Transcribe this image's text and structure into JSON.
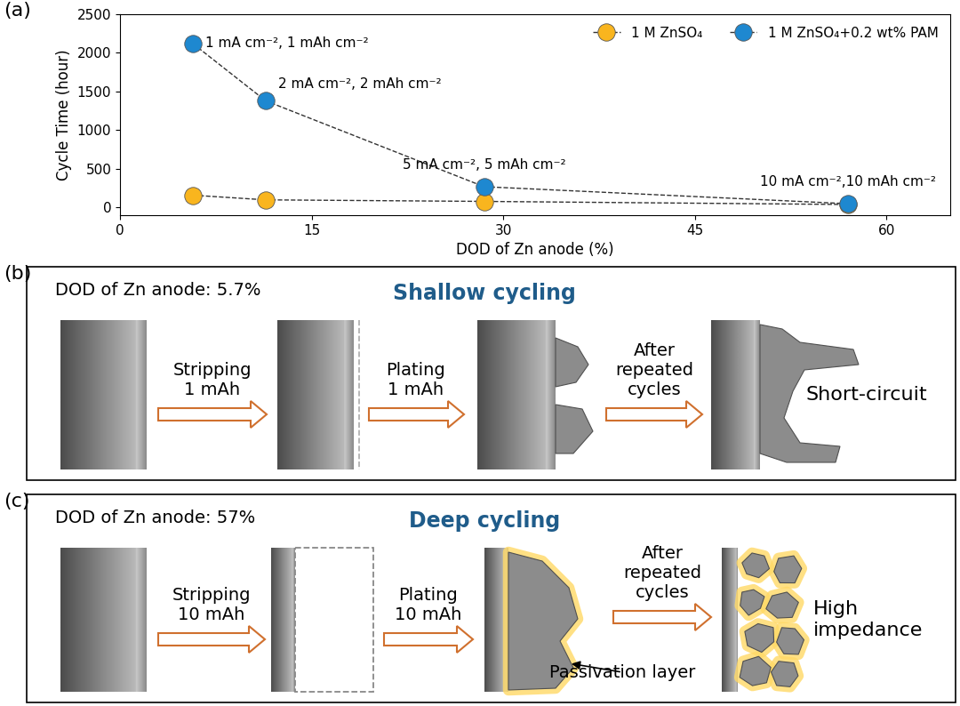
{
  "chart_data": {
    "type": "line",
    "title": "(a)",
    "x": [
      5.7,
      11.4,
      28.5,
      57
    ],
    "xlabel": "DOD of Zn anode (%)",
    "ylabel": "Cycle Time (hour)",
    "xlim": [
      0,
      65
    ],
    "xticks": [
      0,
      15,
      30,
      45,
      60
    ],
    "ylim": [
      -100,
      2500
    ],
    "yticks": [
      0,
      500,
      1000,
      1500,
      2000,
      2500
    ],
    "legend": "upper right",
    "marker": "circle",
    "line_style": "dashed",
    "series": [
      {
        "name": "1 M ZnSO₄",
        "color": "#F9B51E",
        "values": [
          160,
          100,
          80,
          40
        ]
      },
      {
        "name": "1 M ZnSO₄+0.2 wt% PAM",
        "color": "#1E88D0",
        "values": [
          2120,
          1380,
          270,
          50
        ],
        "annotations": [
          "1 mA cm⁻², 1 mAh cm⁻²",
          "2 mA cm⁻², 2 mAh cm⁻²",
          "5 mA cm⁻², 5 mAh cm⁻²",
          "10 mA cm⁻²,10 mAh cm⁻²"
        ]
      }
    ]
  },
  "panels": [
    {
      "label": "(b)",
      "dod": "DOD of Zn anode: 5.7%",
      "title": "Shallow cycling",
      "steps": [
        "Stripping\n1 mAh",
        "Plating\n1 mAh",
        "After\nrepeated\ncycles"
      ],
      "result": "Short-circuit"
    },
    {
      "label": "(c)",
      "dod": "DOD of Zn anode: 57%",
      "title": "Deep cycling",
      "steps": [
        "Stripping\n10 mAh",
        "Plating\n10 mAh",
        "After\nrepeated\ncycles"
      ],
      "note": "Passivation layer",
      "result": "High\nimpedance"
    }
  ]
}
